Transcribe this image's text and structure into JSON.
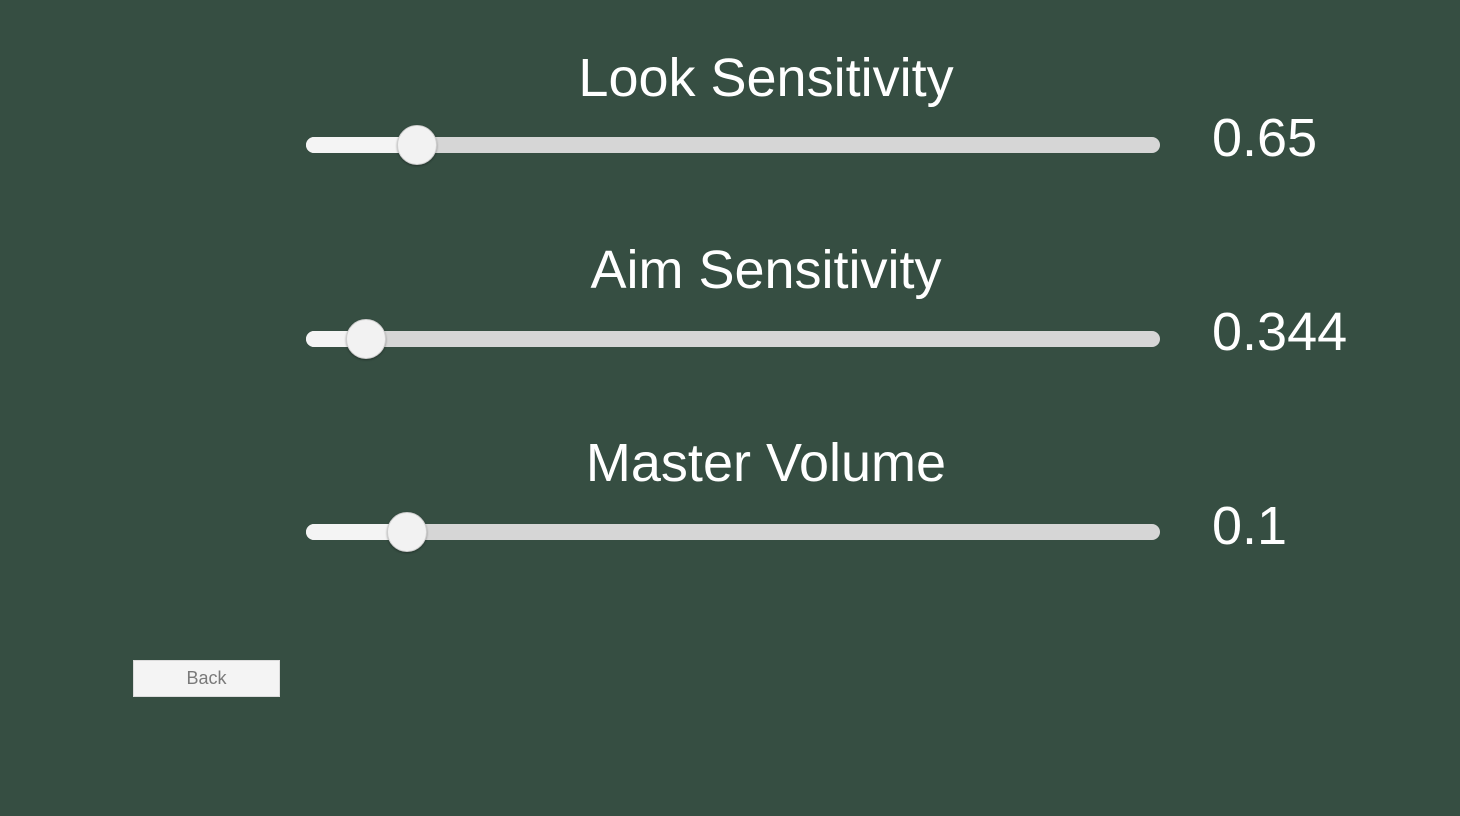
{
  "settings": [
    {
      "title": "Look Sensitivity",
      "value_text": "0.65",
      "slider_fraction": 0.13
    },
    {
      "title": "Aim Sensitivity",
      "value_text": "0.344",
      "slider_fraction": 0.07
    },
    {
      "title": "Master Volume",
      "value_text": "0.1",
      "slider_fraction": 0.118
    }
  ],
  "back_button": {
    "label": "Back"
  },
  "colors": {
    "background": "#364e42",
    "track": "#d6d6d6",
    "fill": "#f4f4f4",
    "handle": "#f2f2f2",
    "text": "#ffffff",
    "button_text": "#7a7a7a"
  }
}
